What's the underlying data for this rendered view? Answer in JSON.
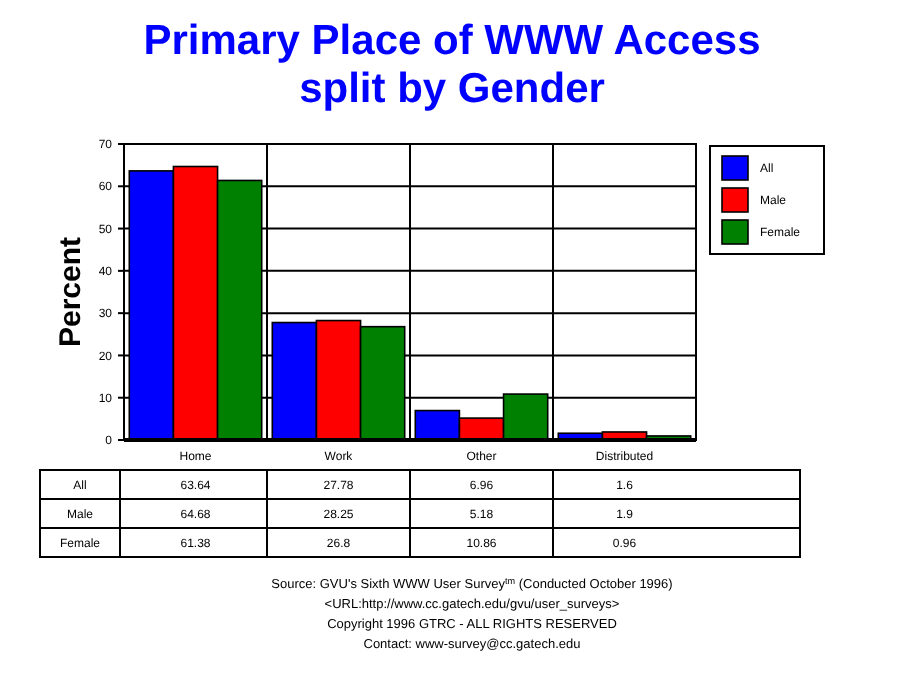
{
  "chart_data": {
    "type": "bar",
    "title": "Primary Place of WWW Access\nsplit by Gender",
    "ylabel": "Percent",
    "categories": [
      "Home",
      "Work",
      "Other",
      "Distributed"
    ],
    "series": [
      {
        "name": "All",
        "color": "#0000ff",
        "values": [
          63.64,
          27.78,
          6.96,
          1.6
        ]
      },
      {
        "name": "Male",
        "color": "#ff0000",
        "values": [
          64.68,
          28.25,
          5.18,
          1.9
        ]
      },
      {
        "name": "Female",
        "color": "#008000",
        "values": [
          61.38,
          26.8,
          10.86,
          0.96
        ]
      }
    ],
    "ylim": [
      0,
      70
    ],
    "yticks": [
      0,
      10,
      20,
      30,
      40,
      50,
      60,
      70
    ],
    "grid": true,
    "legend": "top right",
    "data_labels": true,
    "annotations": [
      "Source: GVU's Sixth WWW User Survey$^{tm}$  (Conducted October 1996)",
      "<URL:http://www.cc.gatech.edu/gvu/user_surveys>",
      "Copyright 1996 GTRC -  ALL RIGHTS RESERVED",
      "Contact: www-survey@cc.gatech.edu"
    ]
  }
}
